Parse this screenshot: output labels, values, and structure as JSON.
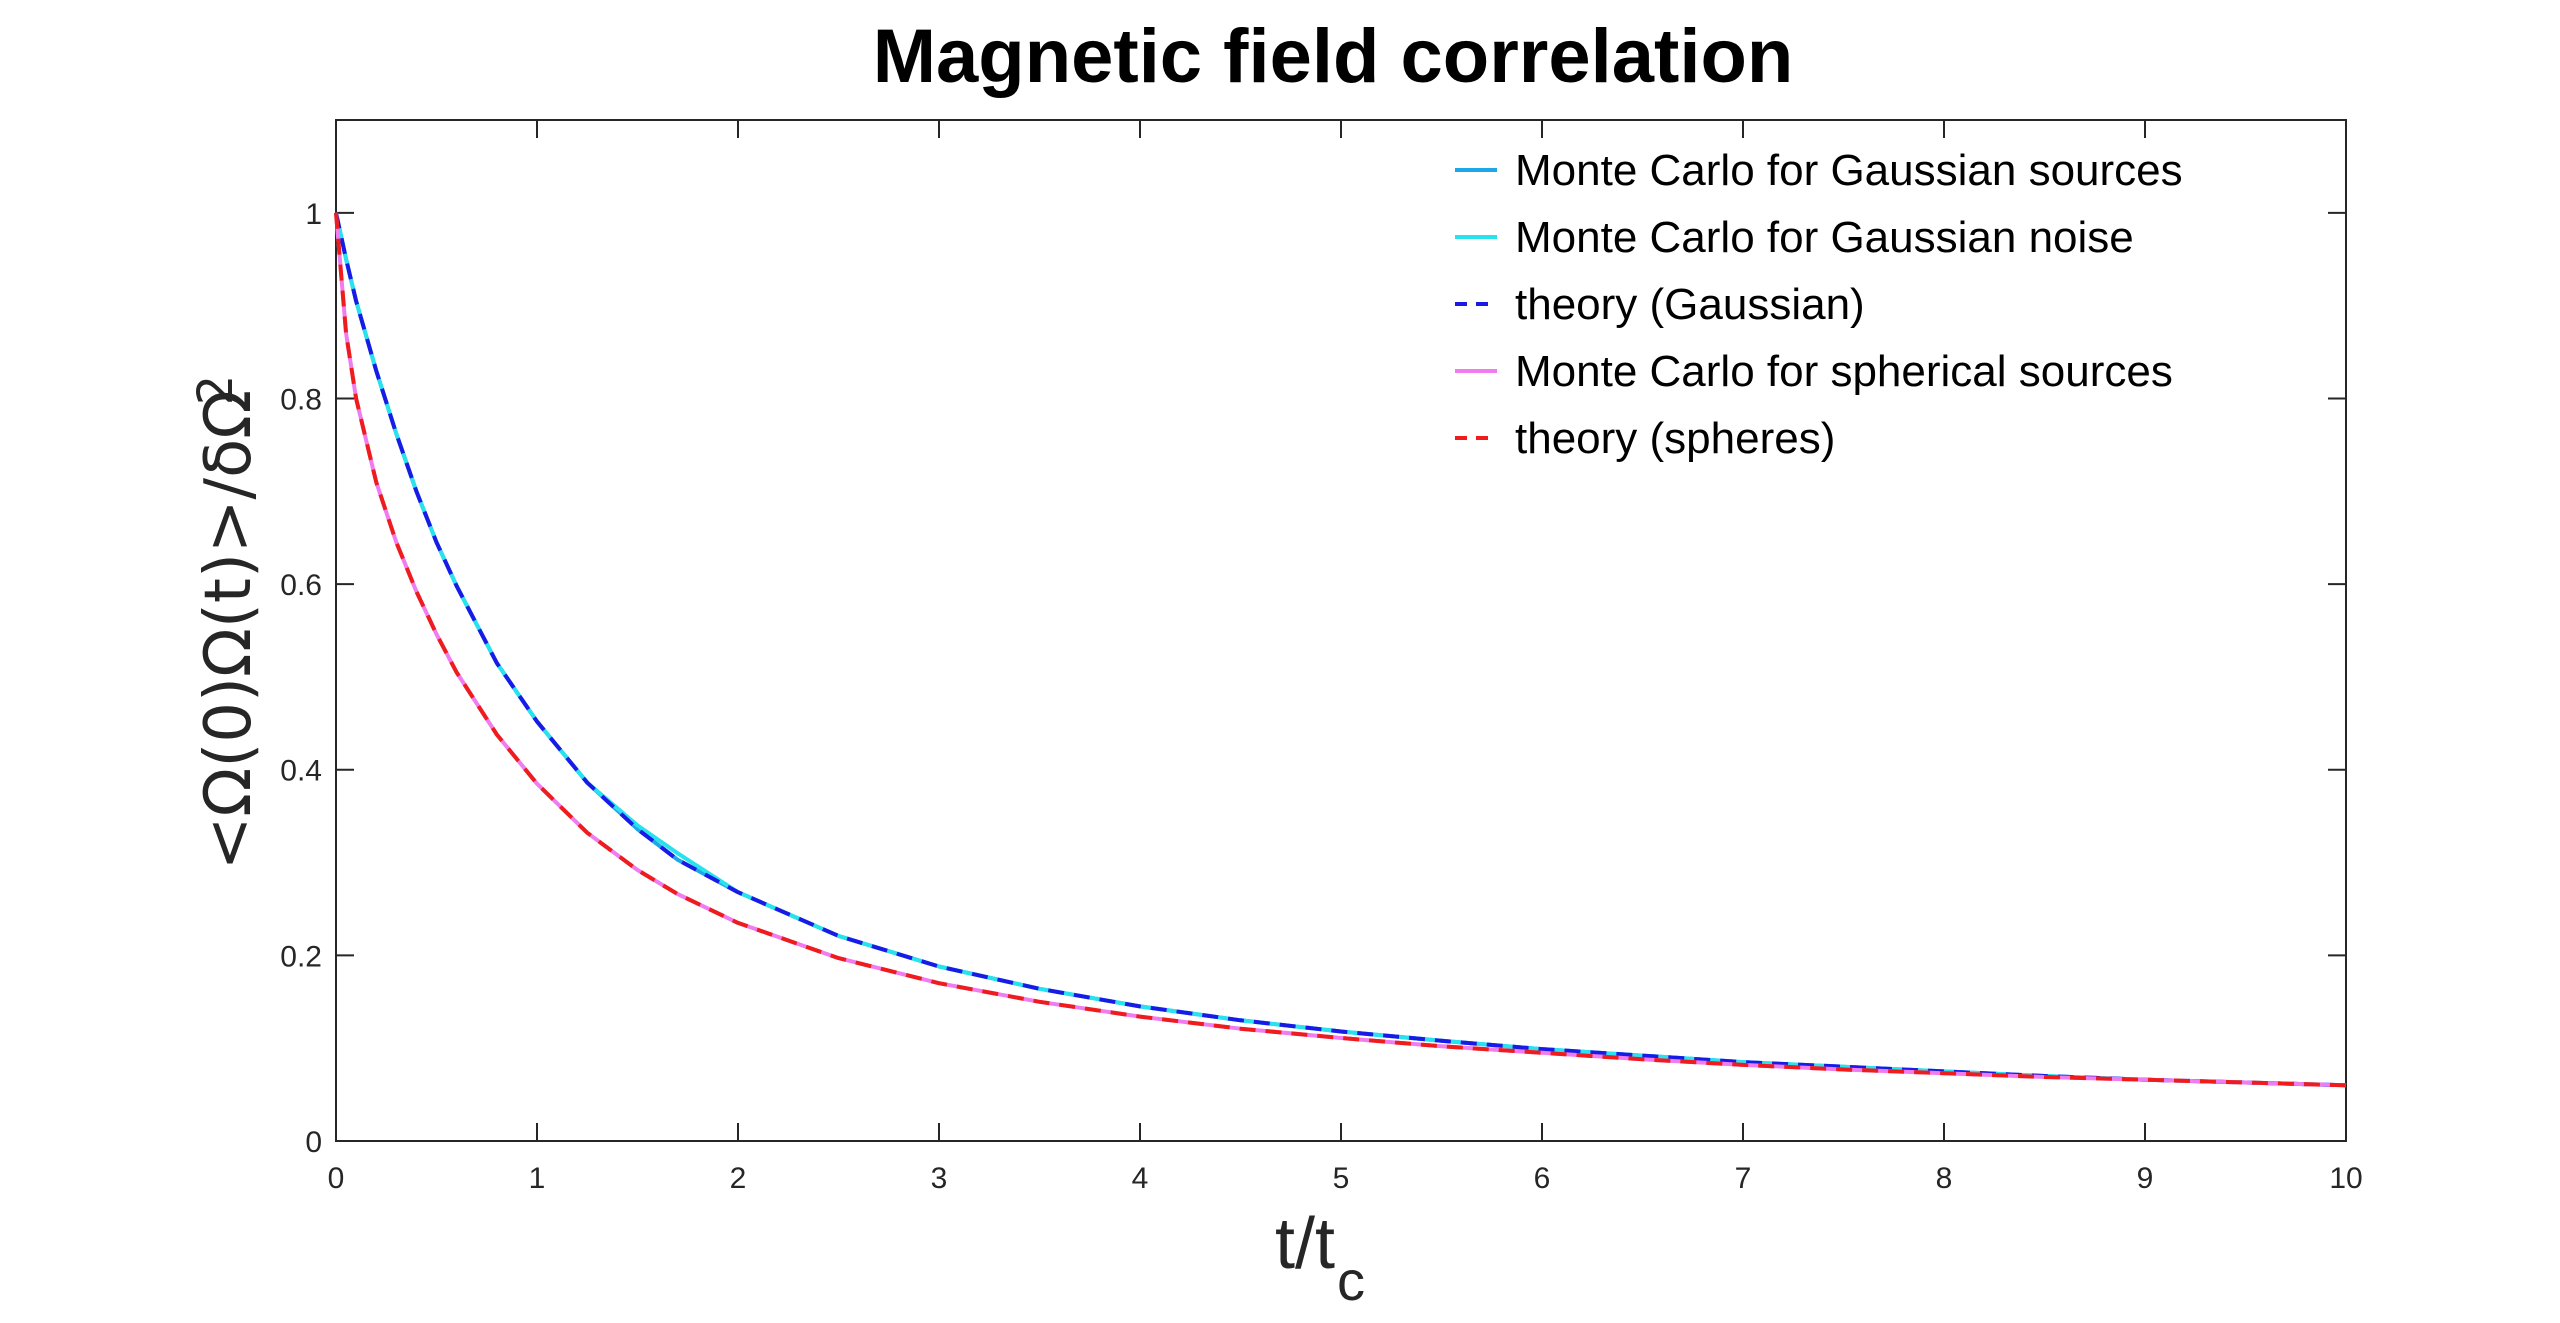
{
  "chart_data": {
    "type": "line",
    "title": "Magnetic field correlation",
    "xlabel": "t/t",
    "xlabel_sub": "c",
    "ylabel": "<Ω(0)Ω(t)>/δΩ",
    "ylabel_sup": "2",
    "xlim": [
      0,
      10
    ],
    "ylim": [
      0,
      1.1
    ],
    "xticks": [
      0,
      1,
      2,
      3,
      4,
      5,
      6,
      7,
      8,
      9,
      10
    ],
    "yticks": [
      0,
      0.2,
      0.4,
      0.6,
      0.8,
      1
    ],
    "xtick_labels": [
      "0",
      "1",
      "2",
      "3",
      "4",
      "5",
      "6",
      "7",
      "8",
      "9",
      "10"
    ],
    "ytick_labels": [
      "0",
      "0.2",
      "0.4",
      "0.6",
      "0.8",
      "1"
    ],
    "legend_position": "top-right",
    "x": [
      0,
      0.05,
      0.1,
      0.2,
      0.3,
      0.4,
      0.5,
      0.6,
      0.8,
      1,
      1.25,
      1.5,
      1.7,
      2,
      2.5,
      3,
      3.5,
      4,
      4.5,
      5,
      5.5,
      6,
      6.5,
      7,
      7.5,
      8,
      8.5,
      9,
      9.5,
      10
    ],
    "series": [
      {
        "name": "Monte Carlo for Gaussian sources",
        "color": "#1ea7e8",
        "style": "solid",
        "values": [
          1,
          0.95,
          0.905,
          0.83,
          0.762,
          0.7,
          0.645,
          0.598,
          0.515,
          0.452,
          0.386,
          0.336,
          0.303,
          0.268,
          0.221,
          0.188,
          0.164,
          0.145,
          0.13,
          0.118,
          0.108,
          0.099,
          0.092,
          0.085,
          0.08,
          0.075,
          0.07,
          0.066,
          0.063,
          0.06
        ]
      },
      {
        "name": "Monte Carlo for Gaussian noise",
        "color": "#28e2ee",
        "style": "solid",
        "values": [
          1,
          0.95,
          0.905,
          0.83,
          0.762,
          0.7,
          0.645,
          0.598,
          0.515,
          0.452,
          0.386,
          0.34,
          0.31,
          0.268,
          0.221,
          0.188,
          0.164,
          0.145,
          0.13,
          0.118,
          0.108,
          0.099,
          0.092,
          0.085,
          0.08,
          0.075,
          0.07,
          0.066,
          0.063,
          0.06
        ]
      },
      {
        "name": "theory (Gaussian)",
        "color": "#1a1ae6",
        "style": "dashed",
        "values": [
          1,
          0.95,
          0.905,
          0.83,
          0.762,
          0.7,
          0.645,
          0.598,
          0.515,
          0.452,
          0.386,
          0.336,
          0.303,
          0.268,
          0.221,
          0.188,
          0.164,
          0.145,
          0.13,
          0.118,
          0.108,
          0.099,
          0.092,
          0.085,
          0.08,
          0.075,
          0.07,
          0.066,
          0.063,
          0.06
        ]
      },
      {
        "name": "Monte Carlo for spherical sources",
        "color": "#f07cf0",
        "style": "solid",
        "values": [
          1,
          0.87,
          0.8,
          0.71,
          0.645,
          0.592,
          0.546,
          0.505,
          0.438,
          0.385,
          0.332,
          0.292,
          0.266,
          0.235,
          0.197,
          0.17,
          0.15,
          0.134,
          0.121,
          0.111,
          0.102,
          0.095,
          0.088,
          0.082,
          0.077,
          0.073,
          0.069,
          0.066,
          0.063,
          0.06
        ]
      },
      {
        "name": "theory (spheres)",
        "color": "#ee1c1c",
        "style": "dashed",
        "values": [
          1,
          0.87,
          0.8,
          0.71,
          0.645,
          0.592,
          0.546,
          0.505,
          0.438,
          0.385,
          0.332,
          0.292,
          0.266,
          0.235,
          0.197,
          0.17,
          0.15,
          0.134,
          0.121,
          0.111,
          0.102,
          0.095,
          0.088,
          0.082,
          0.077,
          0.073,
          0.069,
          0.066,
          0.063,
          0.06
        ]
      }
    ]
  }
}
